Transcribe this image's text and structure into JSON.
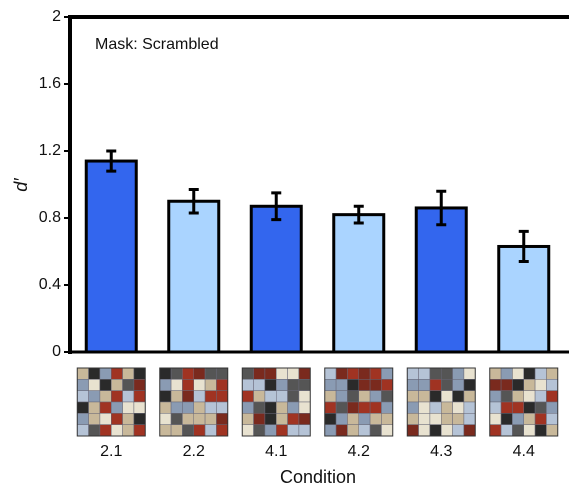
{
  "chart_data": {
    "type": "bar",
    "annotation": "Mask: Scrambled",
    "x_label": "Condition",
    "y_label": "d′",
    "categories": [
      "2.1",
      "2.2",
      "4.1",
      "4.2",
      "4.3",
      "4.4"
    ],
    "values": [
      1.14,
      0.9,
      0.87,
      0.82,
      0.86,
      0.63
    ],
    "errors": [
      0.06,
      0.07,
      0.08,
      0.05,
      0.1,
      0.09
    ],
    "colors": [
      "#3366ee",
      "#aad4ff",
      "#3366ee",
      "#aad4ff",
      "#3366ee",
      "#aad4ff"
    ],
    "ylim": [
      0,
      2
    ],
    "yticks": [
      0,
      0.4,
      0.8,
      1.2,
      1.6,
      2
    ]
  }
}
